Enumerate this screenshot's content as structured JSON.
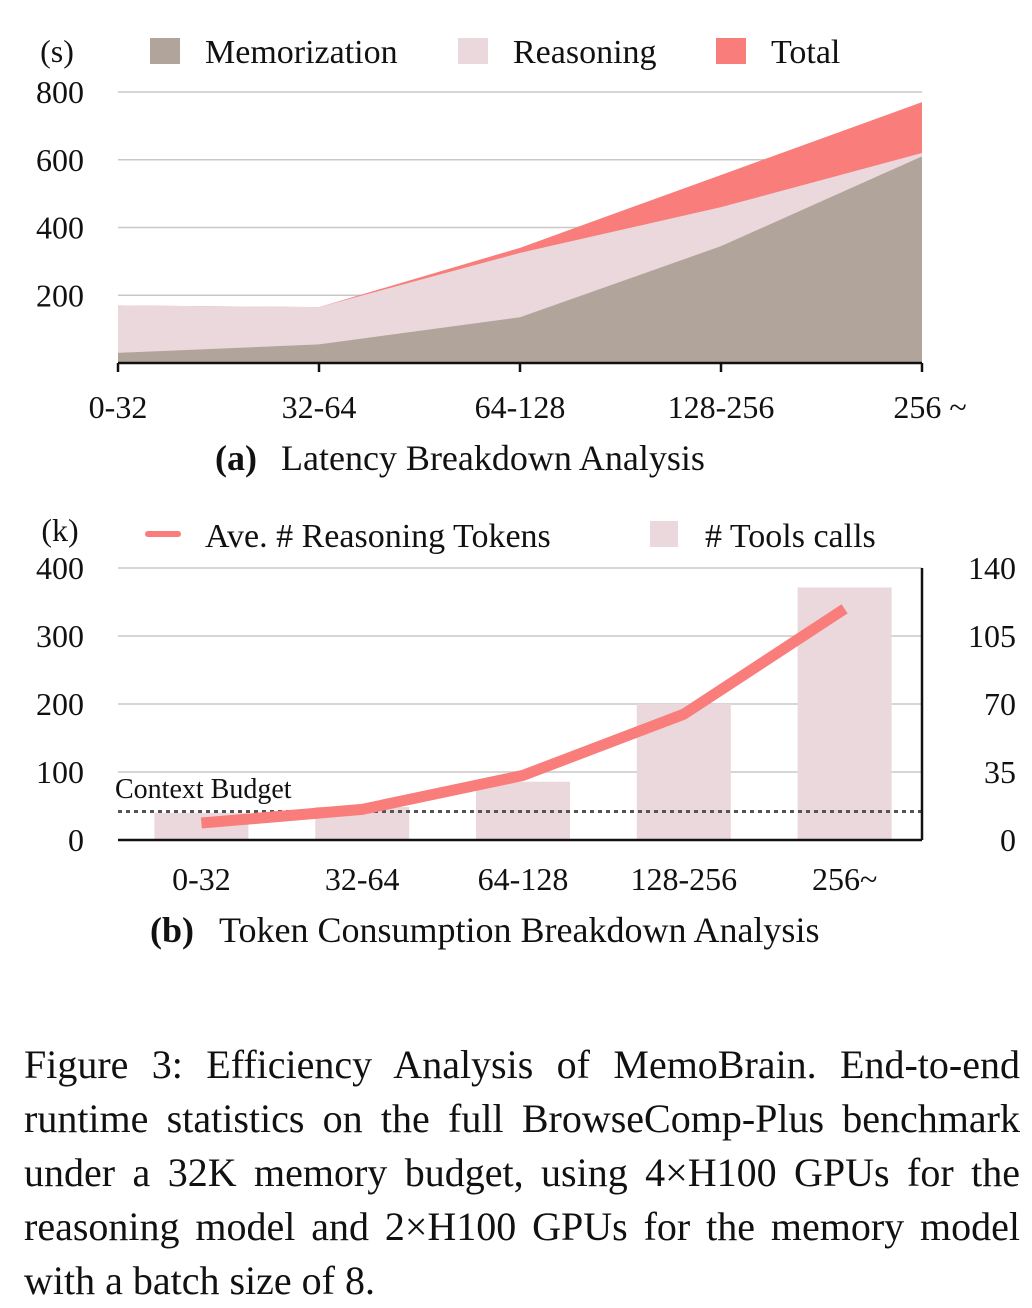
{
  "chart_data": [
    {
      "type": "area",
      "title_letter": "(a)",
      "title": "Latency Breakdown Analysis",
      "unit_label": "(s)",
      "categories": [
        "0-32",
        "32-64",
        "64-128",
        "128-256",
        "256 ~"
      ],
      "ylim": [
        0,
        800
      ],
      "yticks": [
        200,
        400,
        600,
        800
      ],
      "grid": true,
      "legend_position": "top",
      "series": [
        {
          "name": "Memorization",
          "values": [
            30,
            55,
            135,
            345,
            610
          ],
          "color": "#b1a59b"
        },
        {
          "name": "Reasoning",
          "values": [
            170,
            165,
            325,
            460,
            620
          ],
          "color": "#ead8dd"
        },
        {
          "name": "Total",
          "values": [
            170,
            165,
            340,
            555,
            770
          ],
          "color": "#f97d7b"
        }
      ]
    },
    {
      "type": "bar",
      "title_letter": "(b)",
      "title": "Token Consumption Breakdown Analysis",
      "unit_label": "(k)",
      "categories": [
        "0-32",
        "32-64",
        "64-128",
        "128-256",
        "256~"
      ],
      "ylim": [
        0,
        400
      ],
      "yticks": [
        0,
        100,
        200,
        300,
        400
      ],
      "y2lim": [
        0,
        140
      ],
      "y2ticks": [
        0,
        35,
        70,
        105,
        140
      ],
      "grid": true,
      "legend_position": "top",
      "series": [
        {
          "name": "Ave. # Reasoning Tokens",
          "kind": "line",
          "axis": "left",
          "values": [
            25,
            45,
            95,
            185,
            340
          ],
          "color": "#f97d7b"
        },
        {
          "name": "# Tools calls",
          "kind": "bar",
          "axis": "right",
          "values": [
            14,
            17,
            30,
            70,
            130
          ],
          "color": "#ead8dd"
        }
      ],
      "reference_line": {
        "label": "Context Budget",
        "value": 42
      }
    }
  ],
  "caption": "Figure 3: Efficiency Analysis of MemoBrain. End-to-end runtime statistics on the full BrowseComp-Plus benchmark under a 32K memory budget, using 4×H100 GPUs for the reasoning model and 2×H100 GPUs for the memory model with a batch size of 8."
}
